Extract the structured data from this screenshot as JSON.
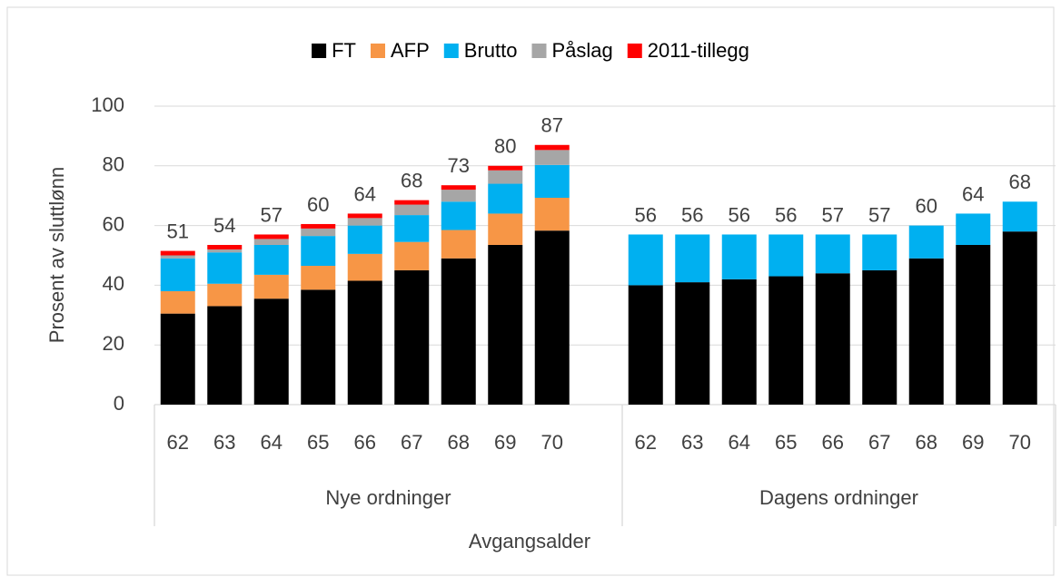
{
  "chart_data": {
    "type": "stacked_bar",
    "y_axis_label": "Prosent av sluttlønn",
    "x_axis_label": "Avgangsalder",
    "groups": [
      "Nye ordninger",
      "Dagens ordninger"
    ],
    "categories": [
      [
        "62",
        "63",
        "64",
        "65",
        "66",
        "67",
        "68",
        "69",
        "70"
      ],
      [
        "62",
        "63",
        "64",
        "65",
        "66",
        "67",
        "68",
        "69",
        "70"
      ]
    ],
    "series": [
      {
        "name": "FT",
        "color": "#000000",
        "values": [
          [
            30.5,
            33,
            35.5,
            38.5,
            41.5,
            45,
            49,
            53.5,
            58.3
          ],
          [
            40,
            41,
            42,
            43,
            44,
            45,
            49,
            53.5,
            58
          ]
        ]
      },
      {
        "name": "AFP",
        "color": "#f79646",
        "values": [
          [
            7.5,
            7.5,
            8,
            8,
            9,
            9.5,
            9.5,
            10.5,
            11
          ],
          [
            null,
            null,
            null,
            null,
            null,
            null,
            null,
            null,
            null
          ]
        ]
      },
      {
        "name": "Brutto",
        "color": "#00b0f0",
        "values": [
          [
            11,
            10.5,
            10,
            10,
            9.5,
            9,
            9.5,
            10,
            11
          ],
          [
            17,
            16,
            15,
            14,
            13,
            12,
            11,
            10.5,
            10
          ]
        ]
      },
      {
        "name": "Påslag",
        "color": "#a6a6a6",
        "values": [
          [
            1,
            1,
            2,
            2.5,
            2.5,
            3.5,
            4,
            4.5,
            5
          ],
          [
            null,
            null,
            null,
            null,
            null,
            null,
            null,
            null,
            null
          ]
        ]
      },
      {
        "name": "2011-tillegg",
        "color": "#ff0000",
        "values": [
          [
            1.5,
            1.5,
            1.5,
            1.5,
            1.5,
            1.5,
            1.5,
            1.5,
            1.7
          ],
          [
            null,
            null,
            null,
            null,
            null,
            null,
            null,
            null,
            null
          ]
        ]
      }
    ],
    "totals": [
      [
        51,
        54,
        57,
        60,
        64,
        68,
        73,
        80,
        87
      ],
      [
        56,
        56,
        56,
        56,
        57,
        57,
        60,
        64,
        68
      ]
    ],
    "ylim": [
      0,
      100
    ],
    "yticks": [
      0,
      20,
      40,
      60,
      80,
      100
    ],
    "grid": true,
    "legend": "top"
  }
}
